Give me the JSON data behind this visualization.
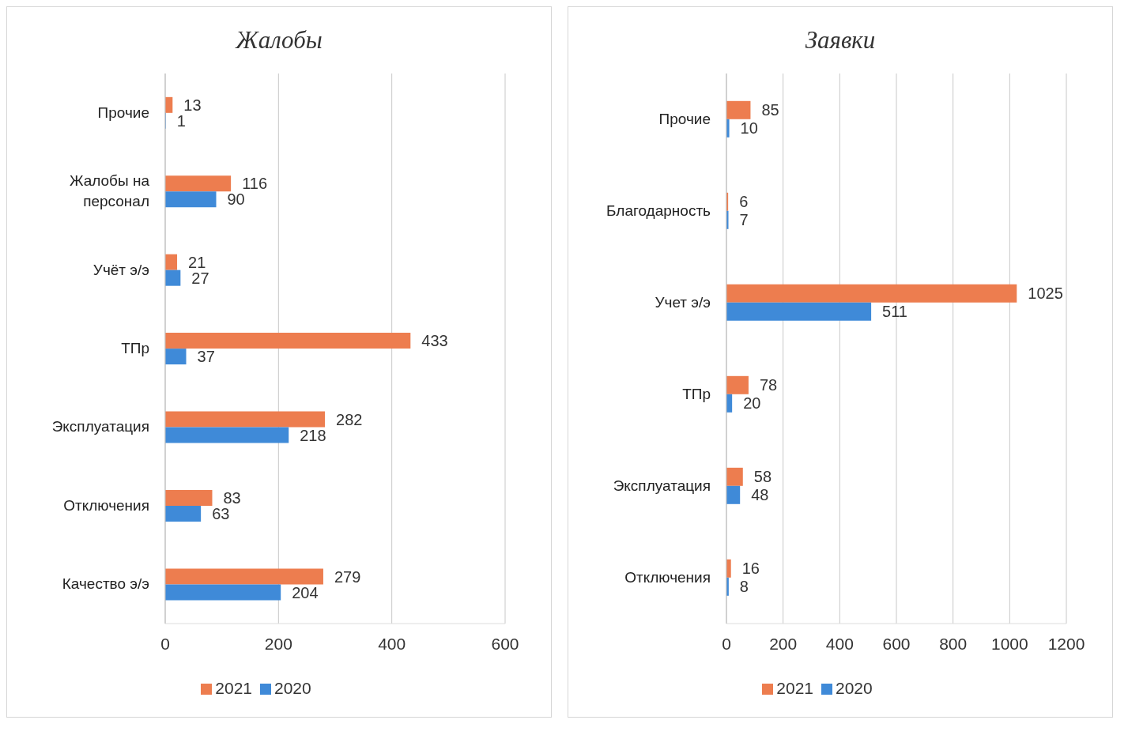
{
  "chart_data": [
    {
      "type": "bar",
      "orientation": "horizontal",
      "title": "Жалобы",
      "categories": [
        "Прочие",
        "Жалобы на персонал",
        "Учёт э/э",
        "ТПр",
        "Эксплуатация",
        "Отключения",
        "Качество э/э"
      ],
      "series": [
        {
          "name": "2021",
          "color": "#ed7d4f",
          "values": [
            13,
            116,
            21,
            433,
            282,
            83,
            279
          ]
        },
        {
          "name": "2020",
          "color": "#3f8ad8",
          "values": [
            1,
            90,
            27,
            37,
            218,
            63,
            204
          ]
        }
      ],
      "xlim": [
        0,
        600
      ],
      "xticks": [
        0,
        200,
        400,
        600
      ],
      "grid": "x",
      "legend": "bottom",
      "data_labels": true
    },
    {
      "type": "bar",
      "orientation": "horizontal",
      "title": "Заявки",
      "categories": [
        "Прочие",
        "Благодарность",
        "Учет э/э",
        "ТПр",
        "Эксплуатация",
        "Отключения"
      ],
      "series": [
        {
          "name": "2021",
          "color": "#ed7d4f",
          "values": [
            85,
            6,
            1025,
            78,
            58,
            16
          ]
        },
        {
          "name": "2020",
          "color": "#3f8ad8",
          "values": [
            10,
            7,
            511,
            20,
            48,
            8
          ]
        }
      ],
      "xlim": [
        0,
        1200
      ],
      "xticks": [
        0,
        200,
        400,
        600,
        800,
        1000,
        1200
      ],
      "grid": "x",
      "legend": "bottom",
      "data_labels": true
    }
  ]
}
